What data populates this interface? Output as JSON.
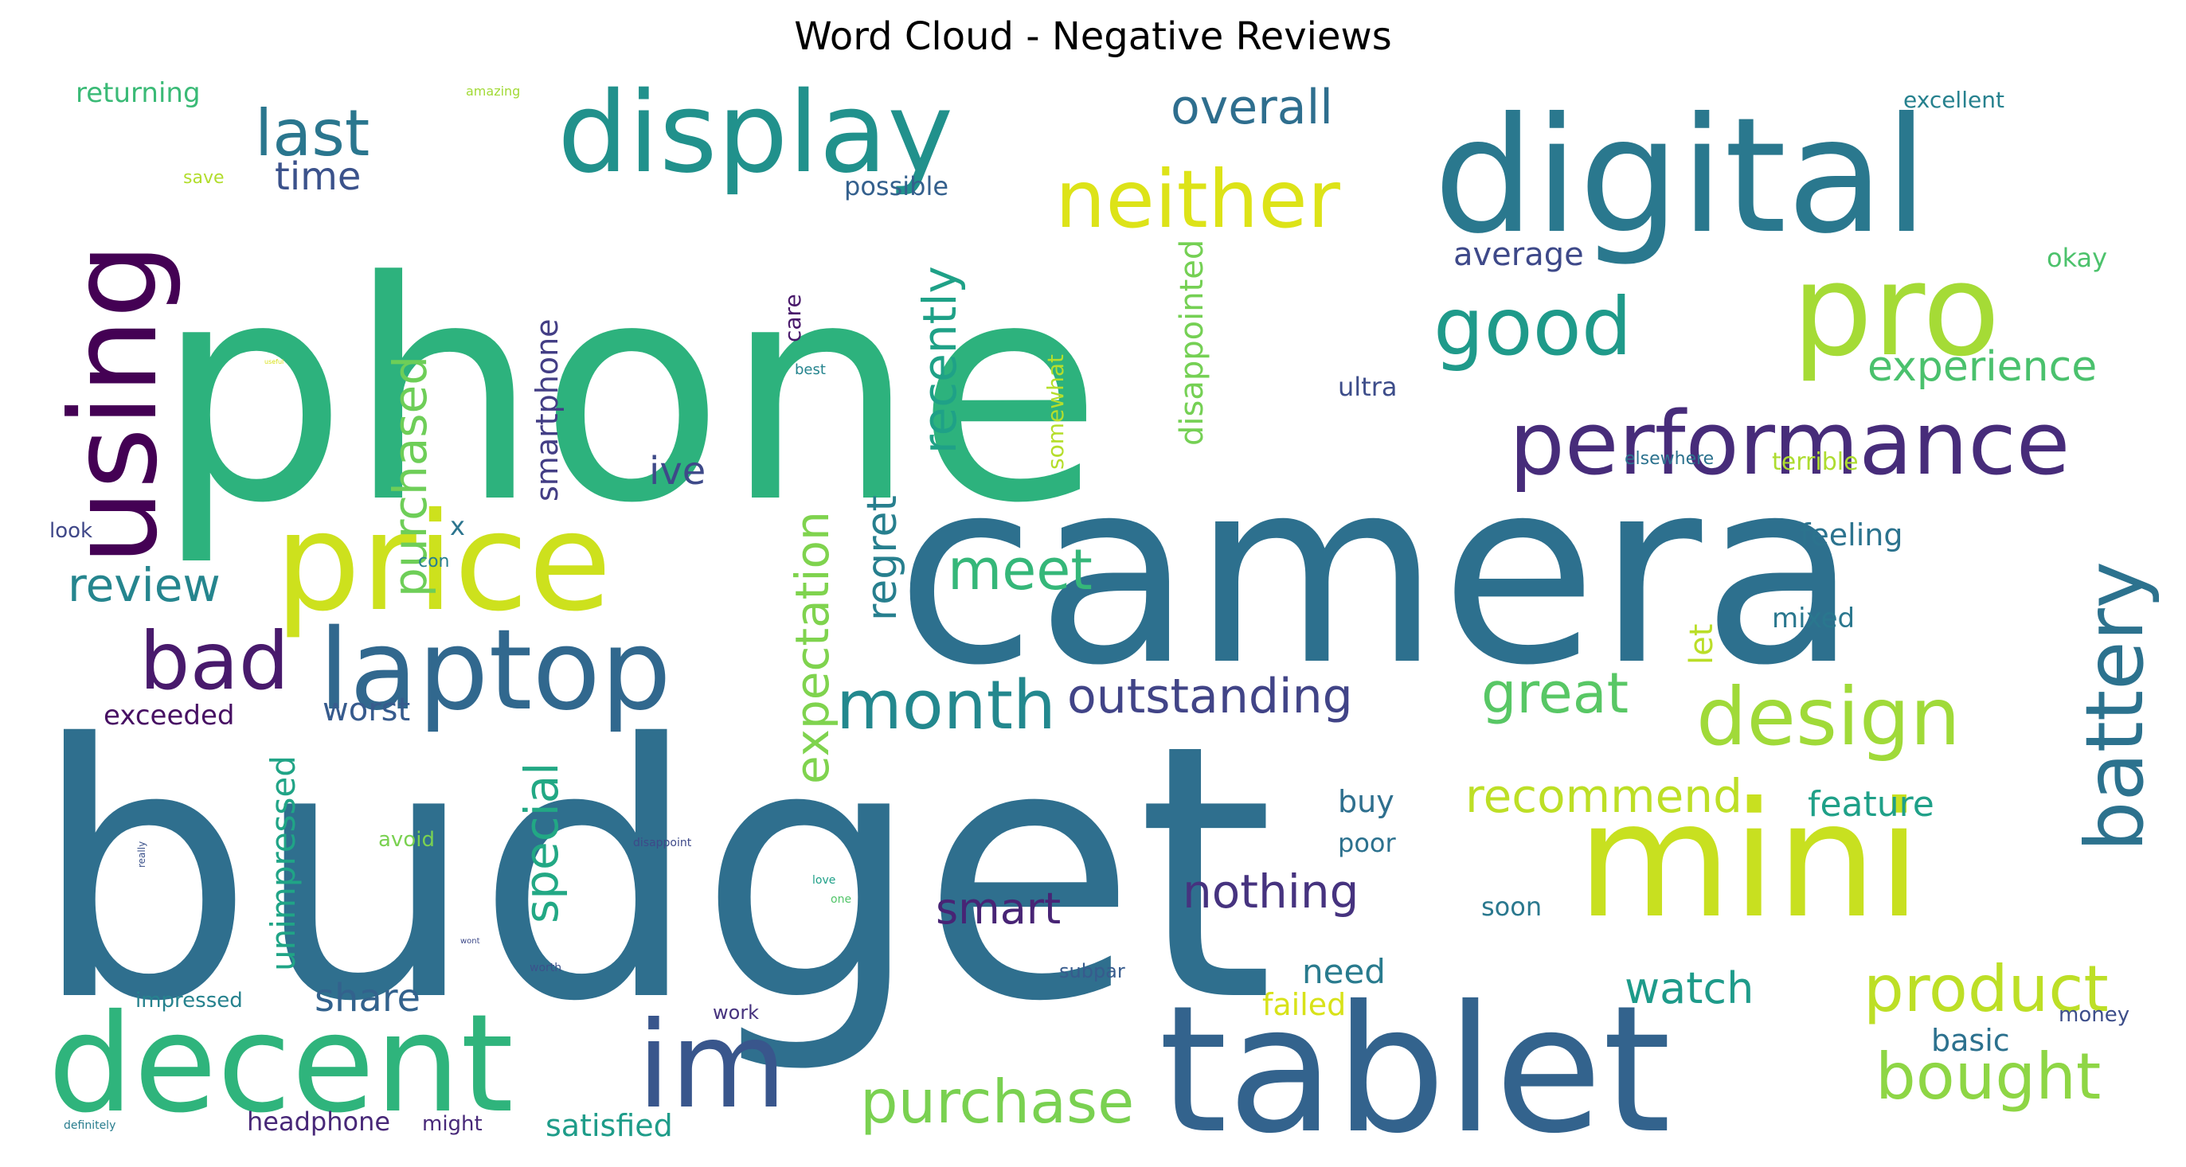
{
  "title": "Word Cloud - Negative Reviews",
  "words": [
    {
      "text": "budget",
      "size": 440,
      "color": "#2f6f8e"
    },
    {
      "text": "phone",
      "size": 380,
      "color": "#2db27d"
    },
    {
      "text": "camera",
      "size": 320,
      "color": "#2d708e"
    },
    {
      "text": "tablet",
      "size": 220,
      "color": "#33638d"
    },
    {
      "text": "digital",
      "size": 200,
      "color": "#2a788e"
    },
    {
      "text": "mini",
      "size": 200,
      "color": "#c8e020"
    },
    {
      "text": "decent",
      "size": 170,
      "color": "#2fb47c"
    },
    {
      "text": "price",
      "size": 170,
      "color": "#cde11d"
    },
    {
      "text": "using",
      "size": 150,
      "color": "#440154"
    },
    {
      "text": "pro",
      "size": 160,
      "color": "#a5db36"
    },
    {
      "text": "display",
      "size": 140,
      "color": "#21918c"
    },
    {
      "text": "im",
      "size": 150,
      "color": "#39568c"
    },
    {
      "text": "laptop",
      "size": 140,
      "color": "#31688e"
    },
    {
      "text": "performance",
      "size": 110,
      "color": "#472c7a"
    },
    {
      "text": "battery",
      "size": 100,
      "color": "#2c728e"
    },
    {
      "text": "neither",
      "size": 100,
      "color": "#dde318"
    },
    {
      "text": "design",
      "size": 100,
      "color": "#a0da39"
    },
    {
      "text": "bad",
      "size": 100,
      "color": "#481a6c"
    },
    {
      "text": "good",
      "size": 100,
      "color": "#1f9a8a"
    },
    {
      "text": "month",
      "size": 85,
      "color": "#23888e"
    },
    {
      "text": "product",
      "size": 80,
      "color": "#bddf26"
    },
    {
      "text": "last",
      "size": 80,
      "color": "#2a768e"
    },
    {
      "text": "bought",
      "size": 80,
      "color": "#8ed645"
    },
    {
      "text": "purchase",
      "size": 75,
      "color": "#7ad151"
    },
    {
      "text": "great",
      "size": 70,
      "color": "#58c765"
    },
    {
      "text": "meet",
      "size": 70,
      "color": "#35b779"
    },
    {
      "text": "outstanding",
      "size": 60,
      "color": "#414487"
    },
    {
      "text": "overall",
      "size": 60,
      "color": "#2e6e8e"
    },
    {
      "text": "review",
      "size": 58,
      "color": "#25858e"
    },
    {
      "text": "recommend",
      "size": 58,
      "color": "#bddf26"
    },
    {
      "text": "nothing",
      "size": 58,
      "color": "#46337f"
    },
    {
      "text": "expectation",
      "size": 58,
      "color": "#7fd34e"
    },
    {
      "text": "purchased",
      "size": 58,
      "color": "#6ece58"
    },
    {
      "text": "experience",
      "size": 52,
      "color": "#4ac16d"
    },
    {
      "text": "special",
      "size": 58,
      "color": "#22a884"
    },
    {
      "text": "recently",
      "size": 58,
      "color": "#1fa187"
    },
    {
      "text": "regret",
      "size": 52,
      "color": "#277f8e"
    },
    {
      "text": "smart",
      "size": 54,
      "color": "#482475"
    },
    {
      "text": "watch",
      "size": 54,
      "color": "#1e9b8a"
    },
    {
      "text": "time",
      "size": 48,
      "color": "#3b528b"
    },
    {
      "text": "ive",
      "size": 48,
      "color": "#3e4a89"
    },
    {
      "text": "share",
      "size": 48,
      "color": "#33628d"
    },
    {
      "text": "unimpressed",
      "size": 42,
      "color": "#20a486"
    },
    {
      "text": "disappointed",
      "size": 40,
      "color": "#75d054"
    },
    {
      "text": "feature",
      "size": 44,
      "color": "#1fa088"
    },
    {
      "text": "need",
      "size": 42,
      "color": "#297b8e"
    },
    {
      "text": "average",
      "size": 40,
      "color": "#3e4989"
    },
    {
      "text": "smartphone",
      "size": 38,
      "color": "#433e85"
    },
    {
      "text": "let",
      "size": 40,
      "color": "#bade28"
    },
    {
      "text": "worst",
      "size": 40,
      "color": "#375b8d"
    },
    {
      "text": "satisfied",
      "size": 38,
      "color": "#1e9c89"
    },
    {
      "text": "basic",
      "size": 38,
      "color": "#2c718e"
    },
    {
      "text": "buy",
      "size": 38,
      "color": "#2e6f8e"
    },
    {
      "text": "feeling",
      "size": 38,
      "color": "#2c738e"
    },
    {
      "text": "failed",
      "size": 38,
      "color": "#d8e219"
    },
    {
      "text": "exceeded",
      "size": 34,
      "color": "#471063"
    },
    {
      "text": "returning",
      "size": 34,
      "color": "#3aba76"
    },
    {
      "text": "mixed",
      "size": 34,
      "color": "#2a778e"
    },
    {
      "text": "possible",
      "size": 32,
      "color": "#34608d"
    },
    {
      "text": "headphone",
      "size": 32,
      "color": "#482878"
    },
    {
      "text": "poor",
      "size": 32,
      "color": "#2c718e"
    },
    {
      "text": "okay",
      "size": 32,
      "color": "#4cc26c"
    },
    {
      "text": "ultra",
      "size": 32,
      "color": "#3d4d8a"
    },
    {
      "text": "soon",
      "size": 32,
      "color": "#2a788e"
    },
    {
      "text": "excellent",
      "size": 28,
      "color": "#26818e"
    },
    {
      "text": "terrible",
      "size": 30,
      "color": "#addc30"
    },
    {
      "text": "somewhat",
      "size": 28,
      "color": "#b5de2b"
    },
    {
      "text": "care",
      "size": 28,
      "color": "#48186a"
    },
    {
      "text": "impressed",
      "size": 26,
      "color": "#26828e"
    },
    {
      "text": "avoid",
      "size": 26,
      "color": "#7ad151"
    },
    {
      "text": "money",
      "size": 26,
      "color": "#3d4e8a"
    },
    {
      "text": "subpar",
      "size": 24,
      "color": "#375b8d"
    },
    {
      "text": "might",
      "size": 26,
      "color": "#482979"
    },
    {
      "text": "work",
      "size": 24,
      "color": "#46327e"
    },
    {
      "text": "look",
      "size": 26,
      "color": "#3f4788"
    },
    {
      "text": "elsewhere",
      "size": 22,
      "color": "#2c728e"
    },
    {
      "text": "x",
      "size": 32,
      "color": "#2b748e"
    },
    {
      "text": "con",
      "size": 22,
      "color": "#277f8e"
    },
    {
      "text": "save",
      "size": 22,
      "color": "#b2dd2d"
    },
    {
      "text": "best",
      "size": 18,
      "color": "#25848e"
    },
    {
      "text": "amazing",
      "size": 16,
      "color": "#a2da37"
    },
    {
      "text": "disappoint",
      "size": 14,
      "color": "#3e4989"
    },
    {
      "text": "love",
      "size": 14,
      "color": "#1fa088"
    },
    {
      "text": "one",
      "size": 14,
      "color": "#52c569"
    },
    {
      "text": "worth",
      "size": 14,
      "color": "#3b528b"
    },
    {
      "text": "really",
      "size": 12,
      "color": "#3b528b"
    },
    {
      "text": "definitely",
      "size": 14,
      "color": "#287d8e"
    },
    {
      "text": "wont",
      "size": 10,
      "color": "#3e4a89"
    },
    {
      "text": "useful",
      "size": 8,
      "color": "#d8e219"
    }
  ]
}
